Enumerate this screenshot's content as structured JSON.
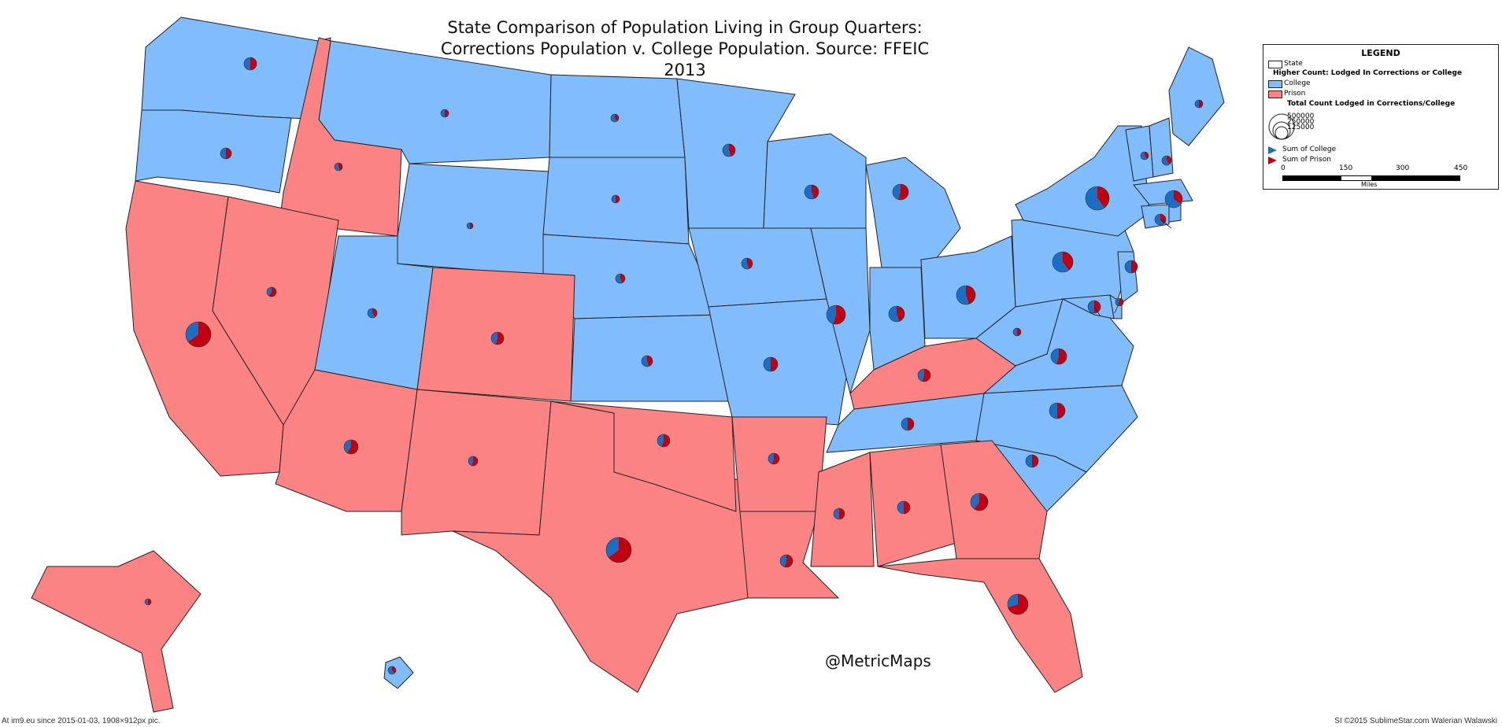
{
  "title": {
    "line1": "State Comparison of Population Living in Group Quarters:",
    "line2": "Corrections Population  v. College Population.  Source: FFEIC 2013"
  },
  "legend": {
    "heading": "LEGEND",
    "state_label": "State",
    "higher_count_heading": "Higher Count:  Lodged In Corrections or College",
    "college_label": "College",
    "prison_label": "Prison",
    "total_heading": "Total Count Lodged in Corrections/College",
    "size_labels": [
      "500000",
      "250000",
      "125000"
    ],
    "sum_college_label": "Sum of College",
    "sum_prison_label": "Sum of Prison",
    "scale_ticks": [
      "0",
      "150",
      "300",
      "450"
    ],
    "scale_unit": "Miles"
  },
  "colors": {
    "college": "#81bdfc",
    "prison": "#fb8383",
    "pie_college": "#1a6fc4",
    "pie_prison": "#c00010",
    "border": "#222222"
  },
  "category_legend": {
    "college_higher": [
      "WA",
      "OR",
      "MT",
      "WY",
      "UT",
      "ND",
      "SD",
      "NE",
      "KS",
      "MN",
      "IA",
      "MO",
      "WI",
      "IL",
      "MI",
      "IN",
      "OH",
      "TN",
      "PA",
      "NY",
      "WV",
      "VA",
      "NC",
      "SC",
      "ME",
      "VT",
      "NH",
      "MA",
      "RI",
      "CT",
      "NJ",
      "DE",
      "MD",
      "HI"
    ],
    "prison_higher": [
      "CA",
      "NV",
      "ID",
      "AZ",
      "CO",
      "NM",
      "TX",
      "OK",
      "AR",
      "LA",
      "MS",
      "AL",
      "GA",
      "FL",
      "KY",
      "AK"
    ]
  },
  "handle": "@MetricMaps",
  "footer": {
    "left": "At im9.eu since 2015-01-03, 1908×912px pic.",
    "right": "SI ©2015 SublimeStar.com Walerian Walawski"
  }
}
